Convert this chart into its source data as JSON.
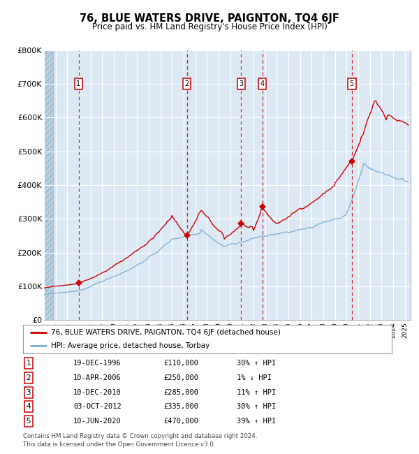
{
  "title": "76, BLUE WATERS DRIVE, PAIGNTON, TQ4 6JF",
  "subtitle": "Price paid vs. HM Land Registry's House Price Index (HPI)",
  "footnote": "Contains HM Land Registry data © Crown copyright and database right 2024.\nThis data is licensed under the Open Government Licence v3.0.",
  "legend_red": "76, BLUE WATERS DRIVE, PAIGNTON, TQ4 6JF (detached house)",
  "legend_blue": "HPI: Average price, detached house, Torbay",
  "ylim": [
    0,
    800000
  ],
  "yticks": [
    0,
    100000,
    200000,
    300000,
    400000,
    500000,
    600000,
    700000,
    800000
  ],
  "ytick_labels": [
    "£0",
    "£100K",
    "£200K",
    "£300K",
    "£400K",
    "£500K",
    "£600K",
    "£700K",
    "£800K"
  ],
  "xlim_start": 1994.0,
  "xlim_end": 2025.5,
  "plot_bg_color": "#dce9f5",
  "hatch_color": "#b8cfe0",
  "grid_color": "#ffffff",
  "red_line_color": "#cc0000",
  "blue_line_color": "#7aadd4",
  "dashed_line_color": "#cc0000",
  "sale_markers": [
    {
      "date": 1996.97,
      "price": 110000,
      "label": "1"
    },
    {
      "date": 2006.27,
      "price": 250000,
      "label": "2"
    },
    {
      "date": 2010.94,
      "price": 285000,
      "label": "3"
    },
    {
      "date": 2012.75,
      "price": 335000,
      "label": "4"
    },
    {
      "date": 2020.44,
      "price": 470000,
      "label": "5"
    }
  ],
  "table_rows": [
    {
      "num": "1",
      "date": "19-DEC-1996",
      "price": "£110,000",
      "hpi": "30% ↑ HPI"
    },
    {
      "num": "2",
      "date": "10-APR-2006",
      "price": "£250,000",
      "hpi": "1% ↓ HPI"
    },
    {
      "num": "3",
      "date": "10-DEC-2010",
      "price": "£285,000",
      "hpi": "11% ↑ HPI"
    },
    {
      "num": "4",
      "date": "03-OCT-2012",
      "price": "£335,000",
      "hpi": "30% ↑ HPI"
    },
    {
      "num": "5",
      "date": "10-JUN-2020",
      "price": "£470,000",
      "hpi": "39% ↑ HPI"
    }
  ]
}
